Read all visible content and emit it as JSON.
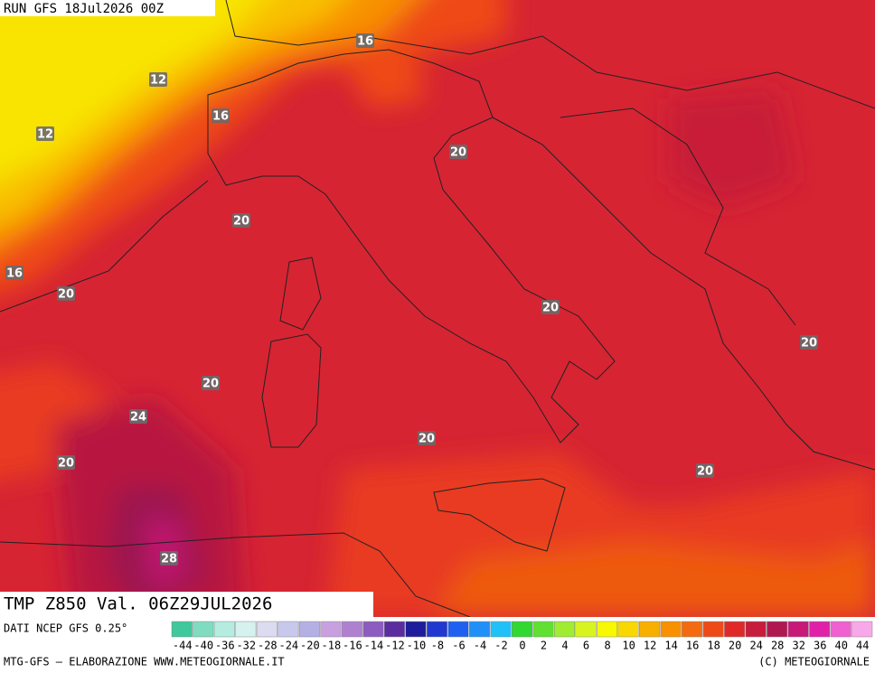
{
  "header": {
    "run": "RUN GFS 18Jul2026 00Z"
  },
  "map": {
    "contour_labels": [
      16,
      12,
      16,
      12,
      20,
      20,
      16,
      20,
      20,
      20,
      20,
      24,
      20,
      20,
      20,
      28
    ]
  },
  "footer": {
    "field": "TMP Z850 Val. 06Z29JUL2026",
    "source": "DATI NCEP GFS 0.25°",
    "credit": "MTG-GFS — ELABORAZIONE WWW.METEOGIORNALE.IT",
    "copyright": "(C) METEOGIORNALE"
  },
  "legend": {
    "labels": [
      -44,
      -40,
      -36,
      -32,
      -28,
      -24,
      -20,
      -18,
      -16,
      -14,
      -12,
      -10,
      -8,
      -6,
      -4,
      -2,
      0,
      2,
      4,
      6,
      8,
      10,
      12,
      14,
      16,
      18,
      20,
      24,
      28,
      32,
      36,
      40,
      44
    ],
    "colors": [
      "#3ec89c",
      "#7fdcc0",
      "#b4ece0",
      "#d6f2ee",
      "#dcdcf0",
      "#c8c8ec",
      "#b4b0e4",
      "#c8a0e0",
      "#b080d0",
      "#8c5cc0",
      "#5a2ca0",
      "#1c1c9c",
      "#2038d0",
      "#2060f0",
      "#2090f8",
      "#20c0f8",
      "#30d830",
      "#60e030",
      "#a0ec30",
      "#d8f420",
      "#f8f800",
      "#f8d800",
      "#f8b000",
      "#f89000",
      "#f46a10",
      "#ee4a18",
      "#e02828",
      "#c81c3c",
      "#b01850",
      "#c81878",
      "#e020a8",
      "#f060d0",
      "#f8a8e8"
    ]
  }
}
